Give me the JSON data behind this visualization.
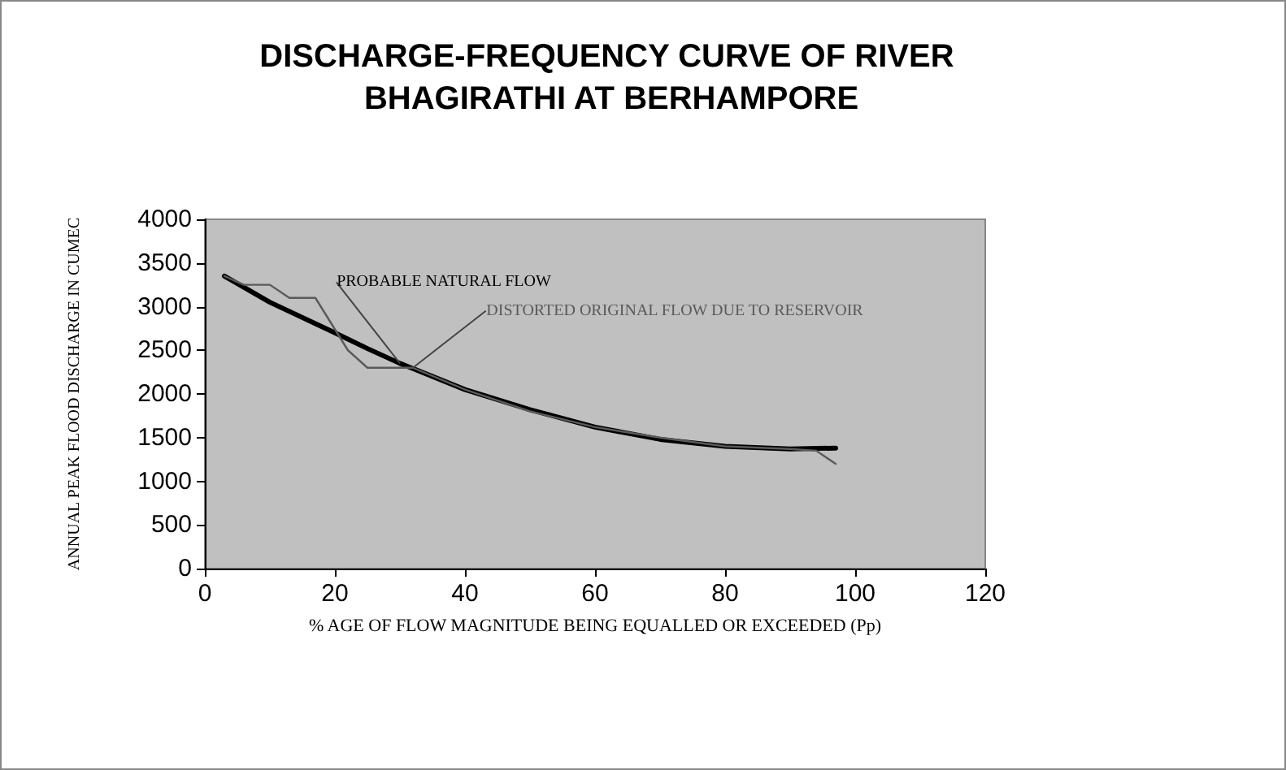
{
  "chart_data": {
    "type": "line",
    "title": "DISCHARGE-FREQUENCY CURVE OF RIVER BHAGIRATHI AT BERHAMPORE",
    "xlabel": "% AGE OF FLOW MAGNITUDE BEING EQUALLED OR EXCEEDED (Pp)",
    "ylabel": "ANNUAL PEAK FLOOD DISCHARGE IN CUMEC",
    "series": [
      {
        "name": "PROBABLE NATURAL FLOW",
        "color": "#000000",
        "x": [
          3,
          10,
          20,
          25,
          30,
          40,
          50,
          60,
          70,
          80,
          90,
          97
        ],
        "values": [
          3350,
          3050,
          2700,
          2520,
          2350,
          2050,
          1820,
          1620,
          1480,
          1400,
          1370,
          1380
        ]
      },
      {
        "name": "DISTORTED ORIGINAL FLOW DUE TO RESERVOIR",
        "color": "#5a5a5a",
        "x": [
          3,
          6,
          10,
          13,
          17,
          22,
          25,
          32,
          40,
          50,
          60,
          70,
          80,
          90,
          94,
          97
        ],
        "values": [
          3350,
          3250,
          3250,
          3100,
          3100,
          2500,
          2300,
          2300,
          2050,
          1800,
          1620,
          1500,
          1400,
          1370,
          1350,
          1200
        ]
      }
    ],
    "xlim": [
      0,
      120
    ],
    "xticks": [
      0,
      20,
      40,
      60,
      80,
      100,
      120
    ],
    "ylim": [
      0,
      4000
    ],
    "yticks": [
      0,
      500,
      1000,
      1500,
      2000,
      2500,
      3000,
      3500,
      4000
    ],
    "grid": false,
    "legend": false,
    "marker": "none",
    "line_style": "solid"
  }
}
